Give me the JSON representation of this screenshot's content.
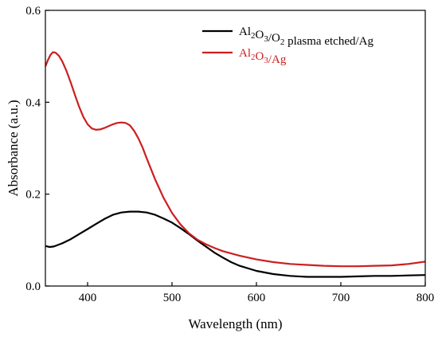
{
  "chart_data": {
    "type": "line",
    "title": "",
    "xlabel": "Wavelength (nm)",
    "ylabel": "Absorbance (a.u.)",
    "xlim": [
      350,
      800
    ],
    "ylim": [
      0.0,
      0.6
    ],
    "xticks": [
      400,
      500,
      600,
      700,
      800
    ],
    "xtick_labels": [
      "400",
      "500",
      "600",
      "700",
      "800"
    ],
    "yticks": [
      0.0,
      0.2,
      0.4,
      0.6
    ],
    "ytick_labels": [
      "0.0",
      "0.2",
      "0.4",
      "0.6"
    ],
    "grid": false,
    "legend_position": "top-right",
    "series": [
      {
        "name": "Al2O3/O2 plasma etched/Ag",
        "legend_parts": [
          {
            "t": "Al",
            "sub": false
          },
          {
            "t": "2",
            "sub": true
          },
          {
            "t": "O",
            "sub": false
          },
          {
            "t": "3",
            "sub": true
          },
          {
            "t": "/O",
            "sub": false
          },
          {
            "t": "2",
            "sub": true
          },
          {
            "t": " plasma etched/Ag",
            "sub": false
          }
        ],
        "color": "#000000",
        "x": [
          350,
          355,
          360,
          370,
          380,
          390,
          400,
          410,
          420,
          430,
          440,
          450,
          460,
          470,
          480,
          490,
          500,
          510,
          520,
          530,
          540,
          550,
          560,
          570,
          580,
          600,
          620,
          640,
          660,
          680,
          700,
          720,
          740,
          760,
          780,
          800
        ],
        "y": [
          0.087,
          0.085,
          0.086,
          0.093,
          0.102,
          0.113,
          0.124,
          0.135,
          0.146,
          0.155,
          0.16,
          0.162,
          0.162,
          0.16,
          0.155,
          0.147,
          0.138,
          0.126,
          0.113,
          0.099,
          0.086,
          0.073,
          0.062,
          0.052,
          0.044,
          0.033,
          0.026,
          0.022,
          0.02,
          0.02,
          0.02,
          0.021,
          0.022,
          0.022,
          0.023,
          0.024
        ]
      },
      {
        "name": "Al2O3/Ag",
        "legend_parts": [
          {
            "t": "Al",
            "sub": false
          },
          {
            "t": "2",
            "sub": true
          },
          {
            "t": "O",
            "sub": false
          },
          {
            "t": "3",
            "sub": true
          },
          {
            "t": "/Ag",
            "sub": false
          }
        ],
        "color": "#cc1f1f",
        "x": [
          350,
          353,
          356,
          359,
          362,
          366,
          370,
          375,
          380,
          385,
          390,
          395,
          400,
          405,
          410,
          415,
          420,
          425,
          430,
          435,
          440,
          445,
          450,
          455,
          460,
          465,
          470,
          480,
          490,
          500,
          510,
          520,
          530,
          540,
          550,
          560,
          580,
          600,
          620,
          640,
          660,
          680,
          700,
          720,
          740,
          760,
          780,
          800
        ],
        "y": [
          0.478,
          0.492,
          0.503,
          0.509,
          0.508,
          0.501,
          0.489,
          0.468,
          0.443,
          0.416,
          0.39,
          0.368,
          0.352,
          0.343,
          0.34,
          0.341,
          0.344,
          0.348,
          0.352,
          0.355,
          0.356,
          0.355,
          0.35,
          0.338,
          0.322,
          0.302,
          0.278,
          0.232,
          0.192,
          0.159,
          0.134,
          0.115,
          0.101,
          0.091,
          0.083,
          0.076,
          0.066,
          0.058,
          0.052,
          0.048,
          0.046,
          0.044,
          0.043,
          0.043,
          0.044,
          0.045,
          0.048,
          0.053
        ]
      }
    ]
  }
}
